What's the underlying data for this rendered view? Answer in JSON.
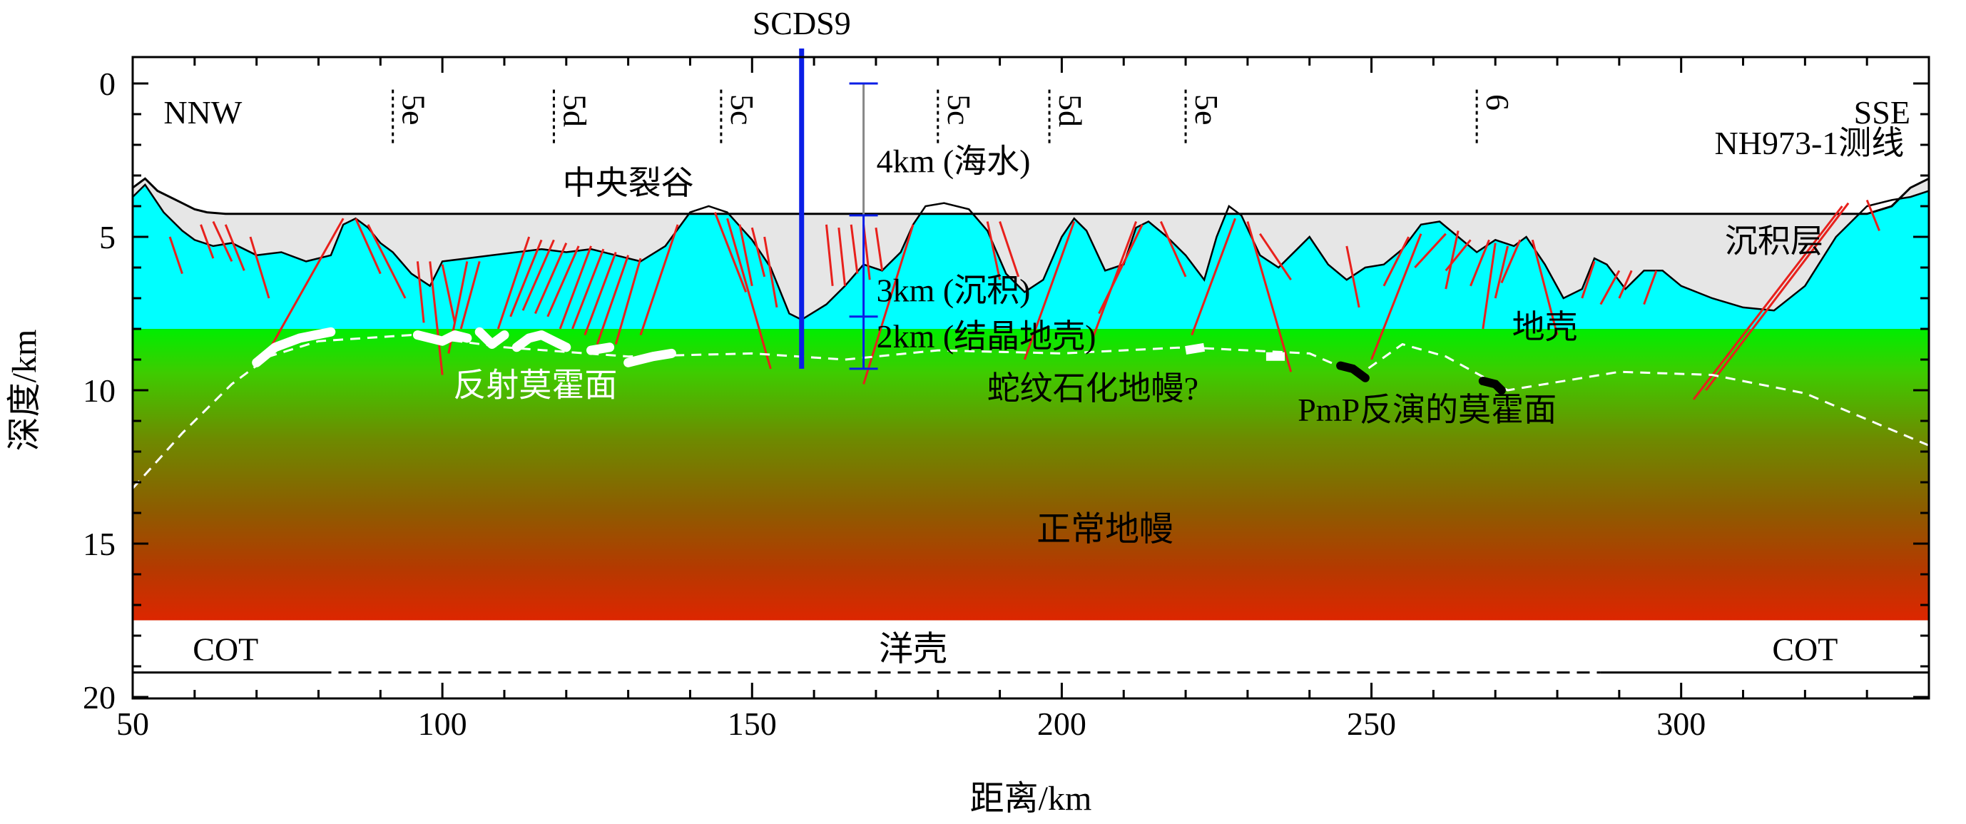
{
  "chart_data": {
    "type": "area",
    "title": "",
    "xlabel": "距离/km",
    "ylabel": "深度/km",
    "xlim": [
      50,
      340
    ],
    "ylim": [
      0,
      20
    ],
    "y_inverted": true,
    "xticks": [
      50,
      100,
      150,
      200,
      250,
      300
    ],
    "yticks": [
      0,
      5,
      10,
      15,
      20
    ],
    "top_label": "SCDS9",
    "well_x": 158,
    "corner_labels": {
      "left": "NNW",
      "right": "SSE"
    },
    "line_label": "NH973-1测线",
    "magnetic_anomalies": [
      {
        "x": 92,
        "label": "5e"
      },
      {
        "x": 118,
        "label": "5d"
      },
      {
        "x": 145,
        "label": "5c"
      },
      {
        "x": 180,
        "label": "5c"
      },
      {
        "x": 198,
        "label": "5d"
      },
      {
        "x": 220,
        "label": "5e"
      },
      {
        "x": 267,
        "label": "6"
      }
    ],
    "layer_labels": {
      "rift": "中央裂谷",
      "sediment": "沉积层",
      "crust": "地壳",
      "reflection_moho": "反射莫霍面",
      "serpentinized": "蛇纹石化地幔?",
      "pmp_moho": "PmP反演的莫霍面",
      "mantle": "正常地幔",
      "ocean_crust": "洋壳",
      "cot": "COT"
    },
    "thickness_bar": {
      "x": 168,
      "segments": [
        {
          "top": 0,
          "bottom": 4.3,
          "label": "4km (海水)"
        },
        {
          "top": 4.3,
          "bottom": 7.6,
          "label": "3km (沉积)"
        },
        {
          "top": 7.6,
          "bottom": 9.3,
          "label": "2km (结晶地壳)"
        }
      ]
    },
    "seafloor": [
      [
        50,
        3.4
      ],
      [
        52,
        3.1
      ],
      [
        54,
        3.5
      ],
      [
        58,
        3.9
      ],
      [
        60,
        4.1
      ],
      [
        62,
        4.2
      ],
      [
        65,
        4.25
      ],
      [
        330,
        4.25
      ],
      [
        334,
        4.0
      ],
      [
        337,
        3.4
      ],
      [
        340,
        3.1
      ]
    ],
    "basement": [
      [
        50,
        3.7
      ],
      [
        52,
        3.3
      ],
      [
        55,
        4.2
      ],
      [
        58,
        4.8
      ],
      [
        60,
        5.1
      ],
      [
        63,
        5.3
      ],
      [
        66,
        5.2
      ],
      [
        70,
        5.6
      ],
      [
        74,
        5.5
      ],
      [
        78,
        5.8
      ],
      [
        82,
        5.6
      ],
      [
        84,
        4.6
      ],
      [
        86,
        4.4
      ],
      [
        88,
        4.7
      ],
      [
        90,
        5.2
      ],
      [
        92,
        5.5
      ],
      [
        95,
        6.2
      ],
      [
        98,
        6.6
      ],
      [
        100,
        5.8
      ],
      [
        104,
        5.7
      ],
      [
        108,
        5.6
      ],
      [
        112,
        5.5
      ],
      [
        116,
        5.4
      ],
      [
        120,
        5.5
      ],
      [
        124,
        5.4
      ],
      [
        128,
        5.6
      ],
      [
        132,
        5.8
      ],
      [
        136,
        5.3
      ],
      [
        140,
        4.2
      ],
      [
        143,
        4.0
      ],
      [
        146,
        4.2
      ],
      [
        150,
        5.1
      ],
      [
        153,
        6.0
      ],
      [
        156,
        7.5
      ],
      [
        158,
        7.7
      ],
      [
        162,
        7.2
      ],
      [
        165,
        6.6
      ],
      [
        168,
        5.9
      ],
      [
        171,
        6.1
      ],
      [
        174,
        5.5
      ],
      [
        176,
        4.6
      ],
      [
        178,
        4.0
      ],
      [
        181,
        3.9
      ],
      [
        185,
        4.1
      ],
      [
        188,
        4.8
      ],
      [
        191,
        6.2
      ],
      [
        194,
        6.8
      ],
      [
        197,
        6.4
      ],
      [
        200,
        5.0
      ],
      [
        202,
        4.4
      ],
      [
        204,
        4.8
      ],
      [
        207,
        6.1
      ],
      [
        210,
        5.9
      ],
      [
        212,
        4.7
      ],
      [
        214,
        4.5
      ],
      [
        217,
        5.0
      ],
      [
        220,
        5.6
      ],
      [
        223,
        6.4
      ],
      [
        225,
        5.0
      ],
      [
        227,
        4.0
      ],
      [
        229,
        4.3
      ],
      [
        232,
        5.6
      ],
      [
        235,
        6.0
      ],
      [
        238,
        5.4
      ],
      [
        240,
        5.0
      ],
      [
        243,
        5.9
      ],
      [
        246,
        6.4
      ],
      [
        249,
        6.0
      ],
      [
        252,
        5.9
      ],
      [
        255,
        5.4
      ],
      [
        258,
        4.6
      ],
      [
        261,
        4.5
      ],
      [
        264,
        5.0
      ],
      [
        267,
        5.5
      ],
      [
        270,
        5.1
      ],
      [
        273,
        5.3
      ],
      [
        275,
        5.0
      ],
      [
        278,
        5.9
      ],
      [
        281,
        7.0
      ],
      [
        284,
        6.7
      ],
      [
        286,
        5.7
      ],
      [
        288,
        5.9
      ],
      [
        291,
        6.7
      ],
      [
        294,
        6.1
      ],
      [
        297,
        6.1
      ],
      [
        300,
        6.6
      ],
      [
        305,
        7.0
      ],
      [
        310,
        7.3
      ],
      [
        315,
        7.4
      ],
      [
        320,
        6.6
      ],
      [
        325,
        5.0
      ],
      [
        330,
        4.0
      ],
      [
        334,
        3.8
      ],
      [
        337,
        3.7
      ],
      [
        340,
        3.5
      ]
    ],
    "crust_mantle_boundary_depth": 8.0,
    "mantle_bottom_depth": 17.5,
    "reflection_moho_segments": [
      [
        [
          70,
          9.1
        ],
        [
          73,
          8.6
        ],
        [
          77,
          8.3
        ],
        [
          82,
          8.1
        ]
      ],
      [
        [
          96,
          8.2
        ],
        [
          100,
          8.4
        ],
        [
          102,
          8.2
        ],
        [
          104,
          8.3
        ]
      ],
      [
        [
          106,
          8.1
        ],
        [
          108,
          8.5
        ],
        [
          110,
          8.2
        ]
      ],
      [
        [
          112,
          8.6
        ],
        [
          114,
          8.3
        ],
        [
          116,
          8.2
        ],
        [
          118,
          8.4
        ],
        [
          120,
          8.6
        ]
      ],
      [
        [
          124,
          8.7
        ],
        [
          127,
          8.6
        ]
      ],
      [
        [
          130,
          9.1
        ],
        [
          134,
          8.9
        ],
        [
          137,
          8.8
        ]
      ]
    ],
    "interpreted_moho": [
      [
        50,
        13.2
      ],
      [
        58,
        11.4
      ],
      [
        66,
        9.8
      ],
      [
        72,
        8.9
      ],
      [
        80,
        8.4
      ],
      [
        95,
        8.2
      ],
      [
        110,
        8.6
      ],
      [
        130,
        8.9
      ],
      [
        150,
        8.8
      ],
      [
        165,
        9.0
      ],
      [
        180,
        8.7
      ],
      [
        200,
        8.8
      ],
      [
        220,
        8.6
      ],
      [
        240,
        8.8
      ],
      [
        248,
        9.5
      ],
      [
        255,
        8.5
      ],
      [
        262,
        8.9
      ],
      [
        272,
        10.0
      ],
      [
        290,
        9.4
      ],
      [
        305,
        9.5
      ],
      [
        320,
        10.1
      ],
      [
        340,
        11.8
      ]
    ],
    "pmp_segments": [
      [
        [
          245,
          9.2
        ],
        [
          247,
          9.3
        ],
        [
          249,
          9.6
        ]
      ],
      [
        [
          268,
          9.7
        ],
        [
          270,
          9.8
        ],
        [
          271,
          10.0
        ]
      ]
    ],
    "white_bars": [
      [
        [
          220,
          8.7
        ],
        [
          223,
          8.6
        ]
      ],
      [
        [
          233,
          8.9
        ],
        [
          236,
          8.9
        ]
      ]
    ],
    "cot_line_depth": 19.2,
    "cot_solid_left": [
      50,
      80
    ],
    "cot_solid_right": [
      287,
      340
    ],
    "faults": [
      [
        [
          56,
          5.0
        ],
        [
          58,
          6.2
        ]
      ],
      [
        [
          61,
          4.6
        ],
        [
          63,
          5.7
        ]
      ],
      [
        [
          63,
          4.5
        ],
        [
          66,
          5.8
        ]
      ],
      [
        [
          65,
          4.6
        ],
        [
          68,
          6.1
        ]
      ],
      [
        [
          69,
          5.0
        ],
        [
          72,
          7.0
        ]
      ],
      [
        [
          84,
          4.4
        ],
        [
          72,
          8.7
        ]
      ],
      [
        [
          86,
          4.4
        ],
        [
          90,
          6.2
        ]
      ],
      [
        [
          88,
          4.6
        ],
        [
          94,
          7.0
        ]
      ],
      [
        [
          96,
          5.8
        ],
        [
          97,
          7.8
        ]
      ],
      [
        [
          98,
          5.8
        ],
        [
          100,
          9.5
        ]
      ],
      [
        [
          100,
          5.9
        ],
        [
          102,
          7.8
        ]
      ],
      [
        [
          104,
          5.8
        ],
        [
          101,
          8.8
        ]
      ],
      [
        [
          106,
          5.8
        ],
        [
          103,
          8.0
        ]
      ],
      [
        [
          114,
          5.0
        ],
        [
          109,
          8.0
        ]
      ],
      [
        [
          116,
          5.1
        ],
        [
          111,
          7.6
        ]
      ],
      [
        [
          118,
          5.1
        ],
        [
          113,
          7.4
        ]
      ],
      [
        [
          120,
          5.2
        ],
        [
          115,
          7.5
        ]
      ],
      [
        [
          122,
          5.3
        ],
        [
          117,
          7.6
        ]
      ],
      [
        [
          124,
          5.3
        ],
        [
          119,
          8.0
        ]
      ],
      [
        [
          126,
          5.4
        ],
        [
          121,
          8.0
        ]
      ],
      [
        [
          128,
          5.5
        ],
        [
          123,
          8.2
        ]
      ],
      [
        [
          130,
          5.6
        ],
        [
          125,
          8.5
        ]
      ],
      [
        [
          132,
          5.7
        ],
        [
          128,
          8.5
        ]
      ],
      [
        [
          138,
          4.6
        ],
        [
          132,
          8.2
        ]
      ],
      [
        [
          144,
          4.2
        ],
        [
          149,
          6.8
        ]
      ],
      [
        [
          146,
          4.4
        ],
        [
          153,
          9.3
        ]
      ],
      [
        [
          148,
          4.6
        ],
        [
          150,
          6.6
        ]
      ],
      [
        [
          150,
          4.7
        ],
        [
          152,
          6.3
        ]
      ],
      [
        [
          152,
          5.0
        ],
        [
          154,
          7.3
        ]
      ],
      [
        [
          162,
          4.6
        ],
        [
          163,
          6.6
        ]
      ],
      [
        [
          164,
          4.7
        ],
        [
          165,
          6.6
        ]
      ],
      [
        [
          166,
          4.6
        ],
        [
          167,
          6.2
        ]
      ],
      [
        [
          168,
          4.6
        ],
        [
          169,
          6.4
        ]
      ],
      [
        [
          170,
          4.7
        ],
        [
          171,
          6.1
        ]
      ],
      [
        [
          176,
          4.6
        ],
        [
          168,
          9.8
        ]
      ],
      [
        [
          188,
          4.5
        ],
        [
          190,
          6.4
        ]
      ],
      [
        [
          190,
          4.5
        ],
        [
          193,
          6.3
        ]
      ],
      [
        [
          202,
          4.5
        ],
        [
          194,
          9.0
        ]
      ],
      [
        [
          212,
          4.5
        ],
        [
          205,
          8.3
        ]
      ],
      [
        [
          213,
          4.6
        ],
        [
          206,
          7.5
        ]
      ],
      [
        [
          216,
          4.5
        ],
        [
          220,
          6.3
        ]
      ],
      [
        [
          228,
          4.4
        ],
        [
          221,
          8.2
        ]
      ],
      [
        [
          230,
          4.5
        ],
        [
          237,
          9.4
        ]
      ],
      [
        [
          232,
          4.9
        ],
        [
          237,
          6.4
        ]
      ],
      [
        [
          246,
          5.3
        ],
        [
          248,
          7.3
        ]
      ],
      [
        [
          256,
          5.0
        ],
        [
          252,
          6.6
        ]
      ],
      [
        [
          258,
          4.9
        ],
        [
          250,
          9.0
        ]
      ],
      [
        [
          262,
          4.9
        ],
        [
          257,
          6.0
        ]
      ],
      [
        [
          264,
          4.8
        ],
        [
          262,
          6.7
        ]
      ],
      [
        [
          266,
          5.1
        ],
        [
          262,
          6.1
        ]
      ],
      [
        [
          269,
          5.1
        ],
        [
          266,
          6.6
        ]
      ],
      [
        [
          270,
          5.2
        ],
        [
          268,
          8.0
        ]
      ],
      [
        [
          272,
          5.3
        ],
        [
          270,
          7.0
        ]
      ],
      [
        [
          274,
          5.1
        ],
        [
          271,
          6.5
        ]
      ],
      [
        [
          276,
          5.1
        ],
        [
          280,
          8.2
        ]
      ],
      [
        [
          286,
          5.8
        ],
        [
          284,
          7.0
        ]
      ],
      [
        [
          290,
          6.1
        ],
        [
          287,
          7.2
        ]
      ],
      [
        [
          292,
          6.1
        ],
        [
          290,
          7.0
        ]
      ],
      [
        [
          296,
          6.1
        ],
        [
          294,
          7.2
        ]
      ],
      [
        [
          326,
          4.0
        ],
        [
          302,
          10.3
        ]
      ],
      [
        [
          327,
          3.9
        ],
        [
          304,
          10.0
        ]
      ],
      [
        [
          330,
          3.8
        ],
        [
          332,
          4.8
        ]
      ]
    ]
  }
}
